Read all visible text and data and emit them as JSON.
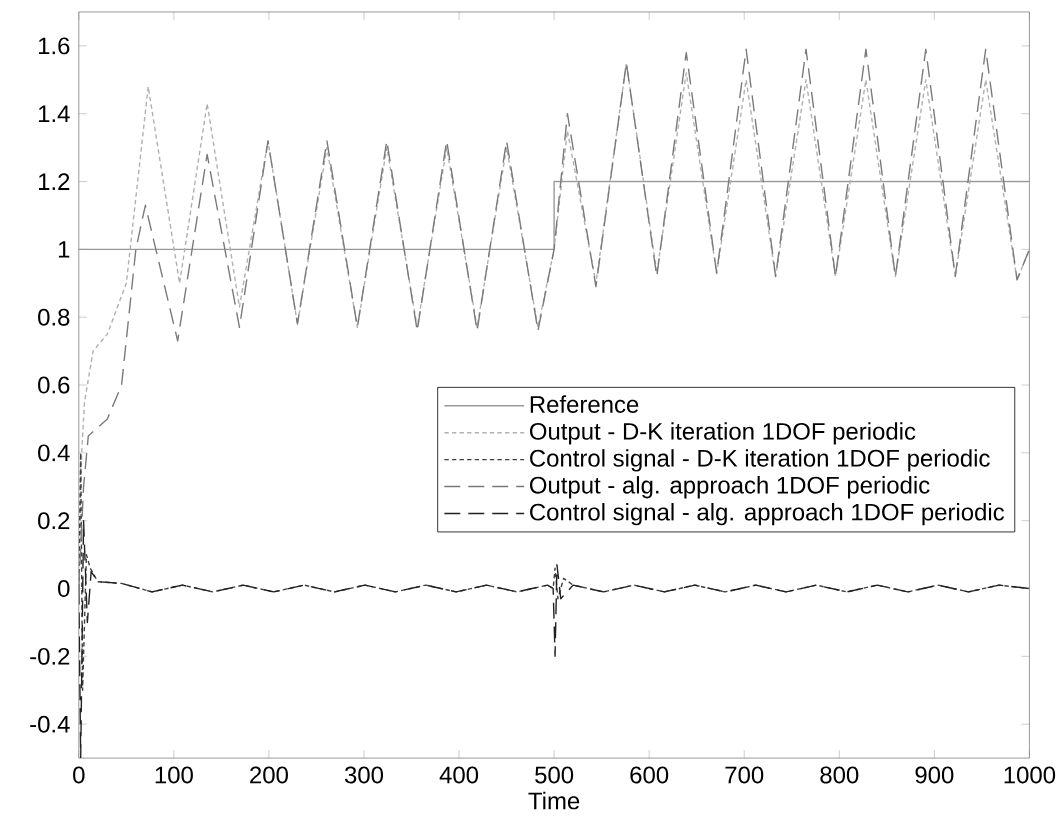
{
  "chart_data": {
    "type": "line",
    "xlabel": "Time",
    "xlim": [
      0,
      1000
    ],
    "ylim": [
      -0.5,
      1.7
    ],
    "xticks": [
      0,
      100,
      200,
      300,
      400,
      500,
      600,
      700,
      800,
      900,
      1000
    ],
    "yticks": [
      -0.4,
      -0.2,
      0,
      0.2,
      0.4,
      0.6,
      0.8,
      1,
      1.2,
      1.4,
      1.6
    ],
    "grid": false,
    "legend": "right",
    "marker": "none",
    "series": [
      {
        "name": "Reference",
        "color": "#9a9a9a",
        "line_style": "solid",
        "x": [
          0,
          500,
          500,
          1000
        ],
        "values": [
          1,
          1,
          1.2,
          1.2
        ]
      },
      {
        "name": "Output - D-K iteration 1DOF periodic",
        "color": "#b0b0b0",
        "line_style": "dotted",
        "x": [
          0,
          3,
          6,
          15,
          30,
          50,
          73,
          106,
          135,
          169,
          199,
          230,
          261,
          293,
          324,
          356,
          387,
          419,
          450,
          483,
          500,
          514,
          544,
          576,
          608,
          639,
          671,
          702,
          733,
          765,
          796,
          828,
          859,
          891,
          922,
          954,
          987,
          1000
        ],
        "values": [
          0,
          0.4,
          0.55,
          0.7,
          0.75,
          0.9,
          1.48,
          0.9,
          1.43,
          0.83,
          1.32,
          0.78,
          1.3,
          0.77,
          1.3,
          0.77,
          1.3,
          0.77,
          1.3,
          0.77,
          1.0,
          1.35,
          0.9,
          1.55,
          0.93,
          1.52,
          0.93,
          1.5,
          0.92,
          1.5,
          0.92,
          1.5,
          0.92,
          1.5,
          0.92,
          1.5,
          0.91,
          1.0
        ]
      },
      {
        "name": "Control signal - D-K iteration 1DOF periodic",
        "color": "#404040",
        "line_style": "dotted",
        "x": [
          0,
          2,
          4,
          8,
          12,
          20,
          45,
          77,
          109,
          141,
          173,
          205,
          237,
          269,
          301,
          333,
          365,
          397,
          429,
          461,
          493,
          499,
          501,
          504,
          510,
          520,
          552,
          584,
          616,
          648,
          680,
          712,
          744,
          776,
          808,
          840,
          872,
          904,
          936,
          968,
          1000
        ],
        "values": [
          0,
          0.4,
          -0.3,
          0.1,
          0.06,
          0.02,
          0.015,
          -0.01,
          0.01,
          -0.01,
          0.01,
          -0.01,
          0.01,
          -0.01,
          0.01,
          -0.01,
          0.01,
          -0.01,
          0.01,
          -0.01,
          0.01,
          0.0,
          0.06,
          -0.03,
          0.03,
          0.01,
          -0.01,
          0.01,
          -0.01,
          0.01,
          -0.01,
          0.01,
          -0.01,
          0.01,
          -0.01,
          0.01,
          -0.01,
          0.01,
          -0.01,
          0.01,
          0.0
        ]
      },
      {
        "name": "Output - alg. approach 1DOF periodic",
        "color": "#7a7a7a",
        "line_style": "dashed",
        "x": [
          0,
          5,
          10,
          30,
          45,
          60,
          70,
          104,
          135,
          169,
          199,
          230,
          261,
          293,
          324,
          356,
          387,
          419,
          450,
          483,
          500,
          514,
          544,
          576,
          608,
          639,
          671,
          702,
          733,
          765,
          796,
          828,
          859,
          891,
          922,
          954,
          987,
          1000
        ],
        "values": [
          0,
          0.3,
          0.45,
          0.5,
          0.6,
          1.0,
          1.13,
          0.73,
          1.28,
          0.77,
          1.32,
          0.78,
          1.32,
          0.77,
          1.32,
          0.76,
          1.32,
          0.76,
          1.32,
          0.76,
          1.0,
          1.4,
          0.89,
          1.55,
          0.92,
          1.58,
          0.93,
          1.59,
          0.92,
          1.59,
          0.92,
          1.59,
          0.92,
          1.59,
          0.92,
          1.59,
          0.91,
          1.0
        ]
      },
      {
        "name": "Control signal - alg. approach 1DOF periodic",
        "color": "#222222",
        "line_style": "dashed",
        "x": [
          0,
          2,
          5,
          9,
          13,
          20,
          45,
          77,
          109,
          141,
          173,
          205,
          237,
          269,
          301,
          333,
          365,
          397,
          429,
          461,
          493,
          499,
          501,
          503,
          507,
          520,
          552,
          584,
          616,
          648,
          680,
          712,
          744,
          776,
          808,
          840,
          872,
          904,
          936,
          968,
          1000
        ],
        "values": [
          0,
          -0.5,
          0.2,
          -0.1,
          0.05,
          0.02,
          0.015,
          -0.01,
          0.01,
          -0.01,
          0.01,
          -0.01,
          0.01,
          -0.01,
          0.01,
          -0.01,
          0.01,
          -0.01,
          0.01,
          -0.01,
          0.01,
          0.0,
          -0.2,
          0.07,
          -0.03,
          0.01,
          -0.01,
          0.01,
          -0.01,
          0.01,
          -0.01,
          0.01,
          -0.01,
          0.01,
          -0.01,
          0.01,
          -0.01,
          0.01,
          -0.01,
          0.01,
          0.0
        ]
      }
    ]
  }
}
